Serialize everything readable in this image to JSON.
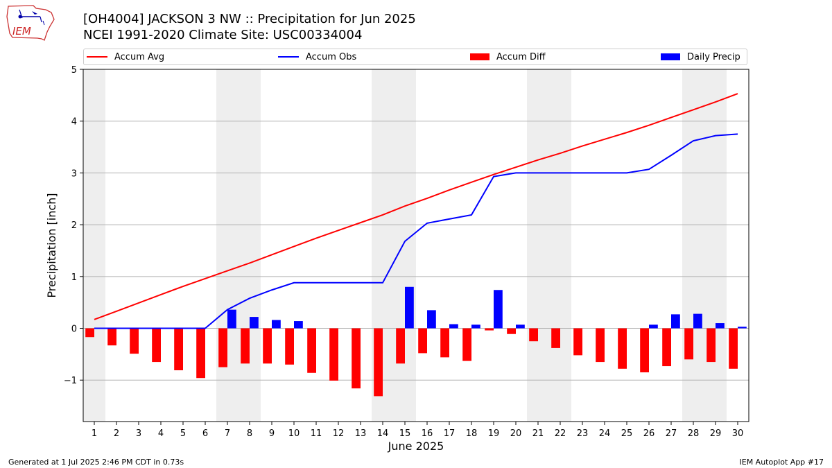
{
  "header": {
    "title_line1": "[OH4004] JACKSON 3 NW :: Precipitation for Jun 2025",
    "title_line2": "NCEI 1991-2020 Climate Site: USC00334004",
    "logo_text": "IEM"
  },
  "footer": {
    "generated": "Generated at 1 Jul 2025 2:46 PM CDT in 0.73s",
    "app": "IEM Autoplot App #17"
  },
  "legend": {
    "accum_avg": "Accum Avg",
    "accum_obs": "Accum Obs",
    "accum_diff": "Accum Diff",
    "daily_precip": "Daily Precip"
  },
  "colors": {
    "accum_avg": "#ff0000",
    "accum_obs": "#0000ff",
    "accum_diff": "#ff0000",
    "daily_precip": "#0000ff",
    "weekend_band": "#eeeeee",
    "grid": "#b0b0b0"
  },
  "chart_data": {
    "type": "bar",
    "xlabel": "June 2025",
    "ylabel": "Precipitation [inch]",
    "x": [
      1,
      2,
      3,
      4,
      5,
      6,
      7,
      8,
      9,
      10,
      11,
      12,
      13,
      14,
      15,
      16,
      17,
      18,
      19,
      20,
      21,
      22,
      23,
      24,
      25,
      26,
      27,
      28,
      29,
      30
    ],
    "ylim": [
      -1.8,
      5.0
    ],
    "yticks": [
      -1,
      0,
      1,
      2,
      3,
      4,
      5
    ],
    "ytick_labels": [
      "−1",
      "0",
      "1",
      "2",
      "3",
      "4",
      "5"
    ],
    "grid": true,
    "weekend_days": [
      1,
      7,
      8,
      14,
      15,
      21,
      22,
      28,
      29
    ],
    "series": [
      {
        "name": "Accum Avg",
        "type": "line",
        "values": [
          0.17,
          0.33,
          0.49,
          0.65,
          0.81,
          0.96,
          1.11,
          1.26,
          1.42,
          1.58,
          1.74,
          1.89,
          2.04,
          2.19,
          2.36,
          2.51,
          2.67,
          2.82,
          2.97,
          3.11,
          3.25,
          3.38,
          3.52,
          3.65,
          3.78,
          3.92,
          4.07,
          4.22,
          4.37,
          4.53
        ]
      },
      {
        "name": "Accum Obs",
        "type": "line",
        "values": [
          0.0,
          0.0,
          0.0,
          0.0,
          0.0,
          0.0,
          0.36,
          0.58,
          0.74,
          0.88,
          0.88,
          0.88,
          0.88,
          0.88,
          1.68,
          2.03,
          2.11,
          2.19,
          2.93,
          3.0,
          3.0,
          3.0,
          3.0,
          3.0,
          3.0,
          3.07,
          3.34,
          3.62,
          3.72,
          3.75
        ]
      },
      {
        "name": "Accum Diff",
        "type": "bar",
        "values": [
          -0.17,
          -0.33,
          -0.49,
          -0.65,
          -0.81,
          -0.96,
          -0.75,
          -0.68,
          -0.68,
          -0.7,
          -0.86,
          -1.01,
          -1.16,
          -1.31,
          -0.68,
          -0.48,
          -0.56,
          -0.63,
          -0.04,
          -0.11,
          -0.25,
          -0.38,
          -0.52,
          -0.65,
          -0.78,
          -0.85,
          -0.73,
          -0.6,
          -0.65,
          -0.78
        ]
      },
      {
        "name": "Daily Precip",
        "type": "bar",
        "values": [
          0,
          0,
          0,
          0,
          0,
          0,
          0.36,
          0.22,
          0.16,
          0.14,
          0,
          0,
          0,
          0,
          0.8,
          0.35,
          0.08,
          0.07,
          0.74,
          0.07,
          0,
          0,
          0,
          0,
          0,
          0.07,
          0.27,
          0.28,
          0.1,
          0.03
        ]
      }
    ]
  }
}
